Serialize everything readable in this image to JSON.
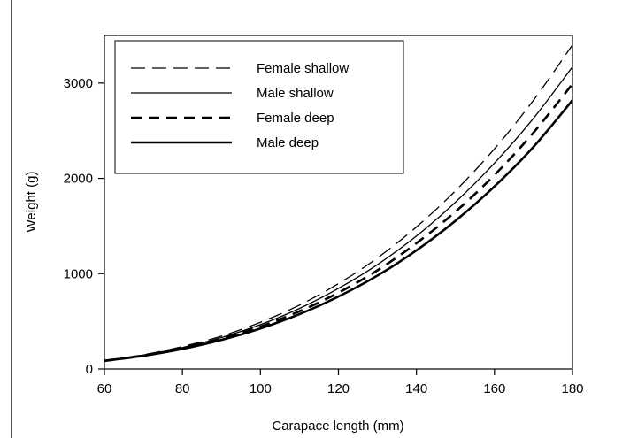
{
  "chart_data": {
    "type": "line",
    "xlabel": "Carapace length (mm)",
    "ylabel": "Weight (g)",
    "xlim": [
      60,
      180
    ],
    "ylim": [
      0,
      3500
    ],
    "xticks": [
      60,
      80,
      100,
      120,
      140,
      160,
      180
    ],
    "yticks": [
      0,
      1000,
      2000,
      3000
    ],
    "grid": false,
    "legend_position": "top-left",
    "x": [
      60,
      70,
      80,
      90,
      100,
      110,
      120,
      130,
      140,
      150,
      160,
      170,
      180
    ],
    "series": [
      {
        "name": "Female shallow",
        "style": "long-dash-thin",
        "values": [
          90,
          150,
          235,
          345,
          490,
          670,
          895,
          1165,
          1490,
          1870,
          2310,
          2820,
          3400
        ]
      },
      {
        "name": "Male shallow",
        "style": "solid-thin",
        "values": [
          88,
          145,
          225,
          330,
          465,
          635,
          845,
          1095,
          1395,
          1750,
          2160,
          2630,
          3170
        ]
      },
      {
        "name": "Female deep",
        "style": "dash-thick",
        "values": [
          86,
          140,
          215,
          315,
          445,
          605,
          800,
          1035,
          1320,
          1650,
          2035,
          2480,
          2990
        ]
      },
      {
        "name": "Male deep",
        "style": "solid-thick",
        "values": [
          85,
          138,
          210,
          305,
          425,
          575,
          760,
          980,
          1245,
          1555,
          1915,
          2330,
          2820
        ]
      }
    ]
  }
}
